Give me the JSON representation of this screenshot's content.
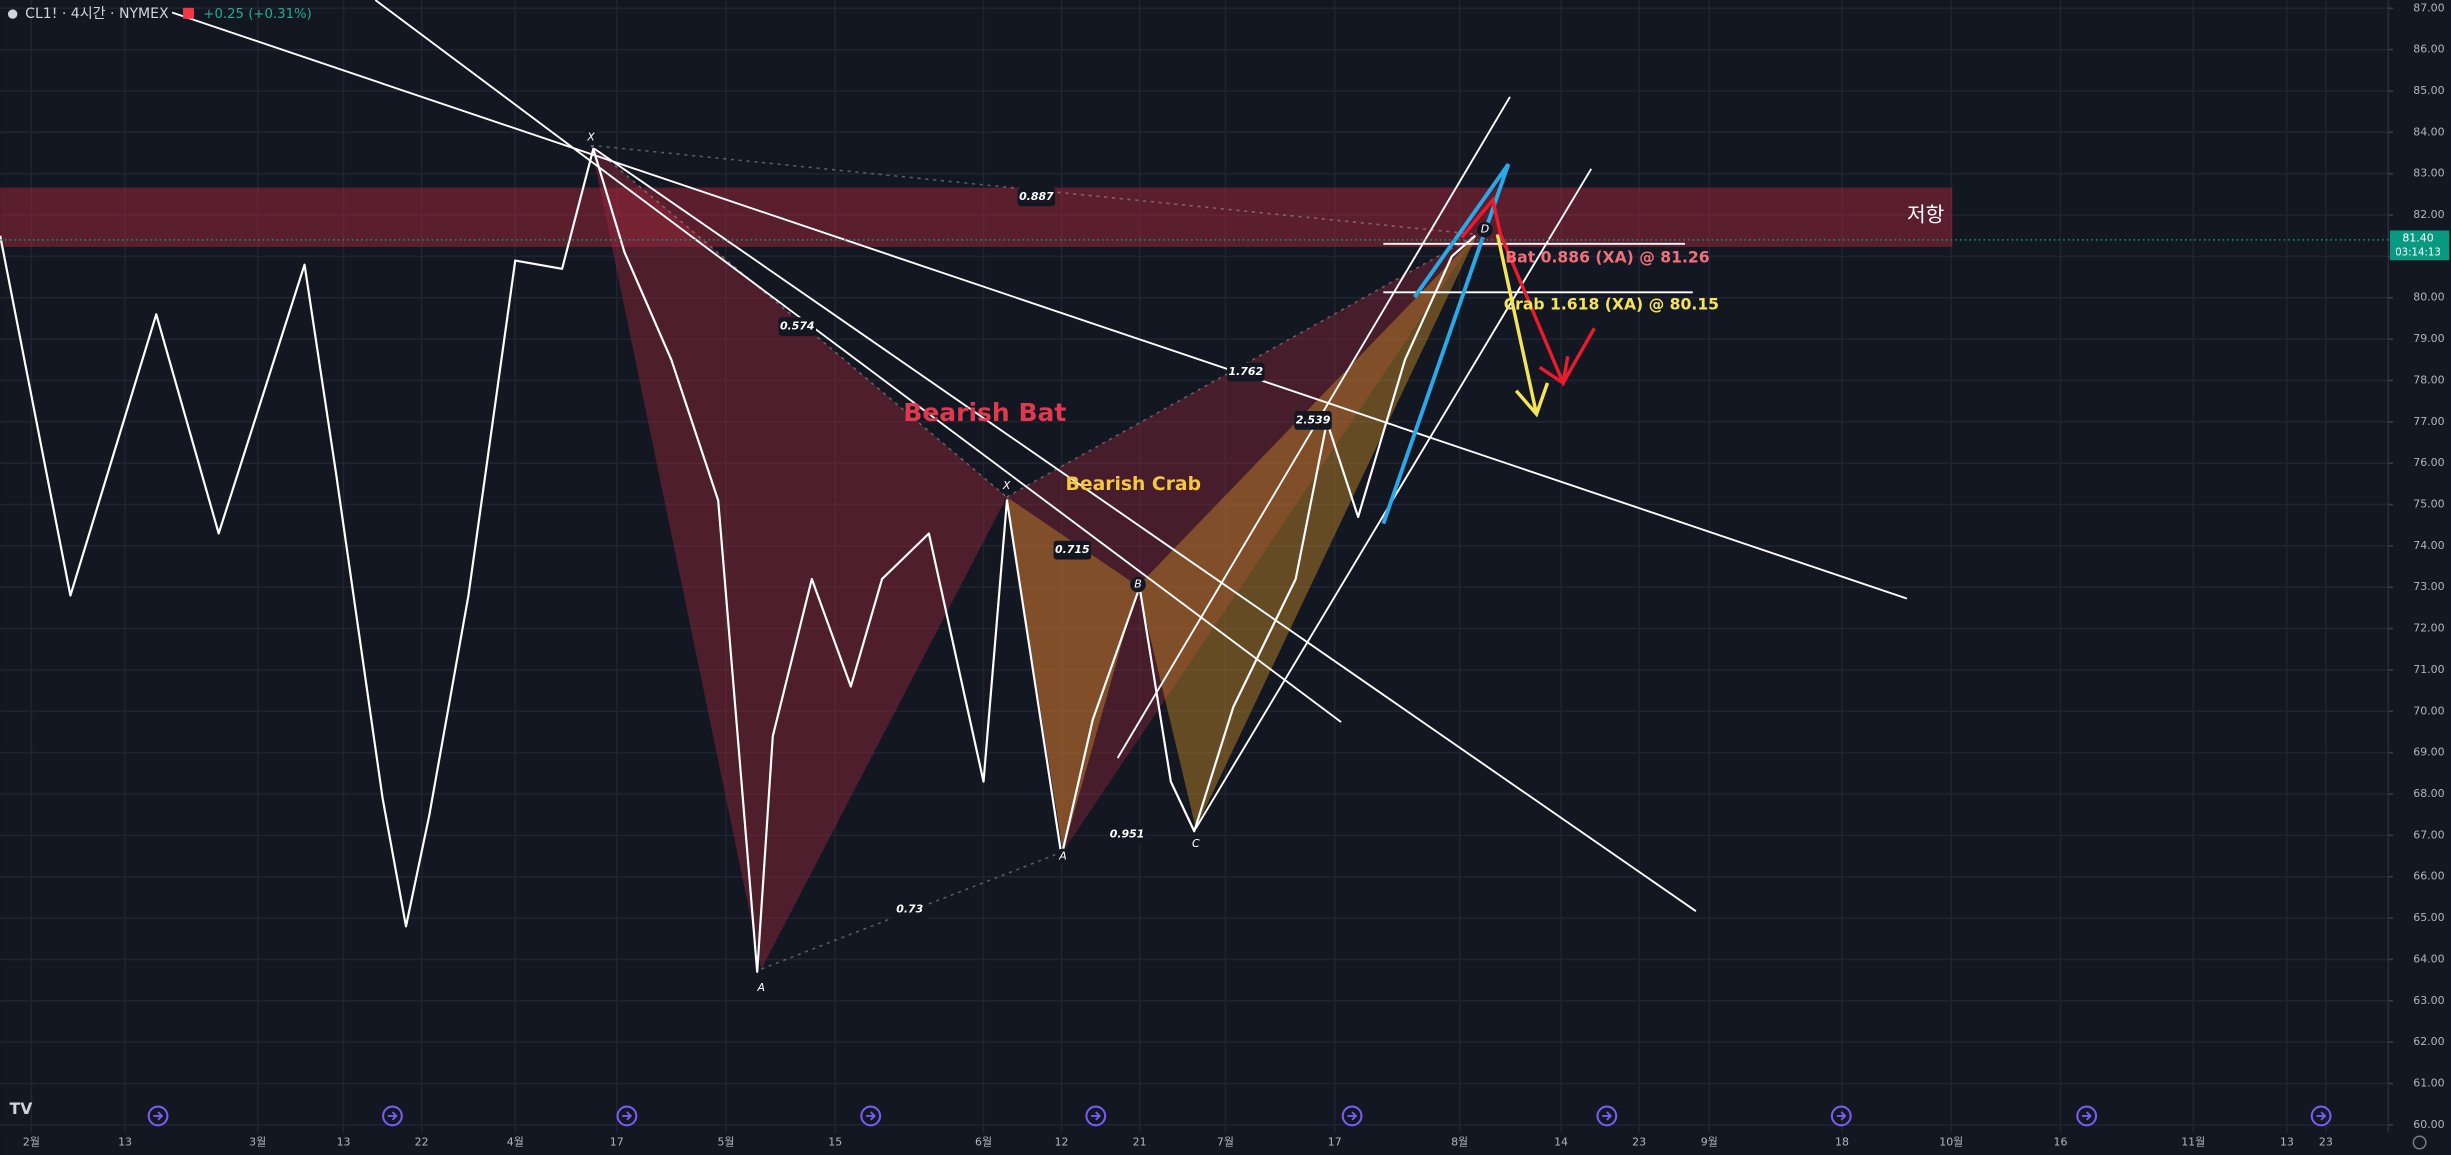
{
  "chart_data": {
    "type": "line",
    "title": "CL1! · 4시간 · NYMEX",
    "change": "+0.25 (+0.31%)",
    "color": "#ffffff",
    "x": [
      -4,
      5,
      16,
      24,
      35,
      39,
      45,
      48,
      51,
      56,
      62,
      68,
      72,
      76,
      82,
      88,
      93,
      95,
      100,
      105,
      109,
      115,
      122,
      125,
      132,
      136,
      142,
      146,
      149,
      154,
      162,
      166,
      170,
      176,
      182,
      185
    ],
    "values": [
      81.5,
      72.8,
      79.6,
      74.3,
      80.8,
      75.8,
      67.9,
      64.8,
      67.5,
      72.8,
      80.9,
      80.7,
      83.6,
      81.1,
      78.5,
      75.1,
      63.7,
      69.4,
      73.2,
      70.6,
      73.2,
      74.3,
      68.3,
      75.1,
      66.5,
      69.8,
      73.0,
      68.3,
      67.1,
      70.1,
      73.2,
      77.0,
      74.7,
      78.5,
      81.0,
      81.5
    ],
    "xlim": [
      -4,
      302
    ],
    "xticks": [
      {
        "value": 0,
        "label": "2월"
      },
      {
        "value": 12,
        "label": "13"
      },
      {
        "value": 29,
        "label": "3월"
      },
      {
        "value": 40,
        "label": "13"
      },
      {
        "value": 50,
        "label": "22"
      },
      {
        "value": 62,
        "label": "4월"
      },
      {
        "value": 75,
        "label": "17"
      },
      {
        "value": 89,
        "label": "5월"
      },
      {
        "value": 103,
        "label": "15"
      },
      {
        "value": 122,
        "label": "6월"
      },
      {
        "value": 132,
        "label": "12"
      },
      {
        "value": 142,
        "label": "21"
      },
      {
        "value": 153,
        "label": "7월"
      },
      {
        "value": 167,
        "label": "17"
      },
      {
        "value": 183,
        "label": "8월"
      },
      {
        "value": 196,
        "label": "14"
      },
      {
        "value": 206,
        "label": "23"
      },
      {
        "value": 215,
        "label": "9월"
      },
      {
        "value": 232,
        "label": "18"
      },
      {
        "value": 246,
        "label": "10월"
      },
      {
        "value": 260,
        "label": "16"
      },
      {
        "value": 277,
        "label": "11월"
      },
      {
        "value": 289,
        "label": "13"
      },
      {
        "value": 294,
        "label": "23"
      }
    ],
    "ylim": [
      59.8,
      87.2
    ],
    "yticks": [
      {
        "value": 60,
        "label": "60.00"
      },
      {
        "value": 61,
        "label": "61.00"
      },
      {
        "value": 62,
        "label": "62.00"
      },
      {
        "value": 63,
        "label": "63.00"
      },
      {
        "value": 64,
        "label": "64.00"
      },
      {
        "value": 65,
        "label": "65.00"
      },
      {
        "value": 66,
        "label": "66.00"
      },
      {
        "value": 67,
        "label": "67.00"
      },
      {
        "value": 68,
        "label": "68.00"
      },
      {
        "value": 69,
        "label": "69.00"
      },
      {
        "value": 70,
        "label": "70.00"
      },
      {
        "value": 71,
        "label": "71.00"
      },
      {
        "value": 72,
        "label": "72.00"
      },
      {
        "value": 73,
        "label": "73.00"
      },
      {
        "value": 74,
        "label": "74.00"
      },
      {
        "value": 75,
        "label": "75.00"
      },
      {
        "value": 76,
        "label": "76.00"
      },
      {
        "value": 77,
        "label": "77.00"
      },
      {
        "value": 78,
        "label": "78.00"
      },
      {
        "value": 79,
        "label": "79.00"
      },
      {
        "value": 80,
        "label": "80.00"
      },
      {
        "value": 81,
        "label": "81.00"
      },
      {
        "value": 82,
        "label": "82.00"
      },
      {
        "value": 83,
        "label": "83.00"
      },
      {
        "value": 84,
        "label": "84.00"
      },
      {
        "value": 85,
        "label": "85.00"
      },
      {
        "value": 86,
        "label": "86.00"
      },
      {
        "value": 87,
        "label": "87.00"
      }
    ],
    "grid": true,
    "last_price": {
      "value": 81.4,
      "label": "81.40"
    },
    "countdown": "03:14:13",
    "annotations": [
      "Bearish Bat",
      "Bearish Crab",
      "저항",
      "Bat 0.886 (XA) @ 81.26",
      "Crab 1.618 (XA) @ 80.15",
      "X",
      "A",
      "X",
      "A",
      "B",
      "C",
      "D",
      "0.887",
      "0.574",
      "1.762",
      "2.539",
      "0.715",
      "0.951",
      "0.73"
    ]
  }
}
